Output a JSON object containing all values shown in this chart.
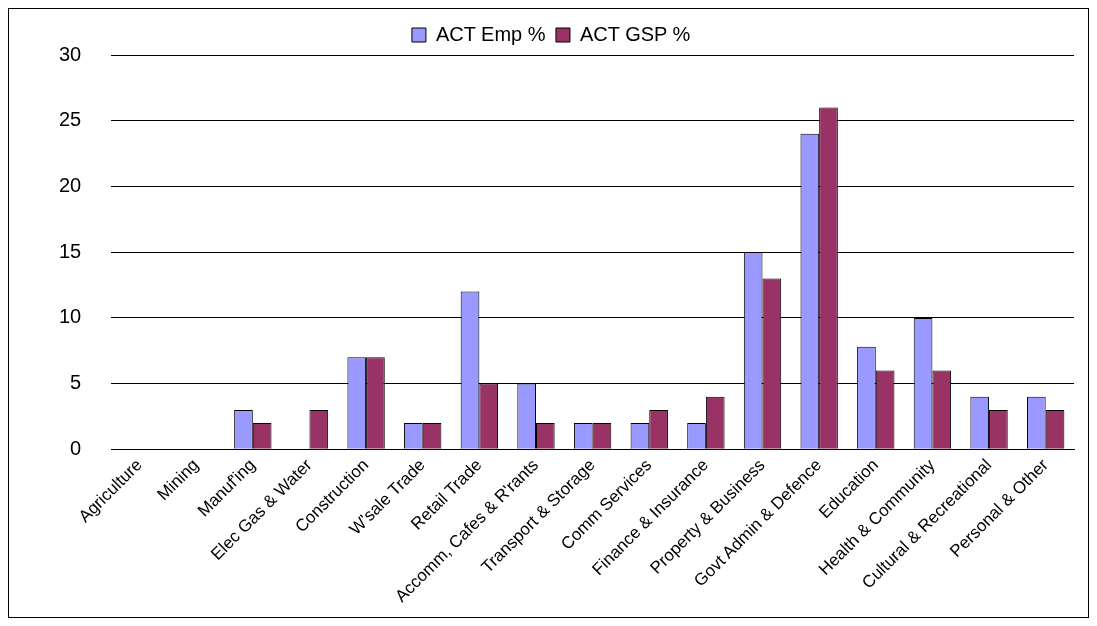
{
  "chart_data": {
    "type": "bar",
    "categories": [
      "Agriculture",
      "Mining",
      "Manuf'ing",
      "Elec Gas & Water",
      "Construction",
      "W'sale Trade",
      "Retail Trade",
      "Accomm, Cafes & R'rants",
      "Transport & Storage",
      "Comm Services",
      "Finance & Insurance",
      "Property & Business",
      "Govt Admin & Defence",
      "Education",
      "Health & Community",
      "Cultural & Recreational",
      "Personal & Other"
    ],
    "series": [
      {
        "name": "ACT Emp %",
        "color": "#9999ff",
        "values": [
          0,
          0,
          3,
          0,
          7,
          2,
          12,
          5,
          2,
          2,
          2,
          15,
          24,
          7.8,
          10,
          4,
          4
        ]
      },
      {
        "name": "ACT GSP %",
        "color": "#993366",
        "values": [
          0,
          0,
          2,
          3,
          7,
          2,
          5,
          2,
          2,
          3,
          4,
          13,
          26,
          6,
          6,
          3,
          3
        ]
      }
    ],
    "ylim": [
      0,
      30
    ],
    "yticks": [
      0,
      5,
      10,
      15,
      20,
      25,
      30
    ],
    "grid": "y",
    "legend": "top"
  }
}
